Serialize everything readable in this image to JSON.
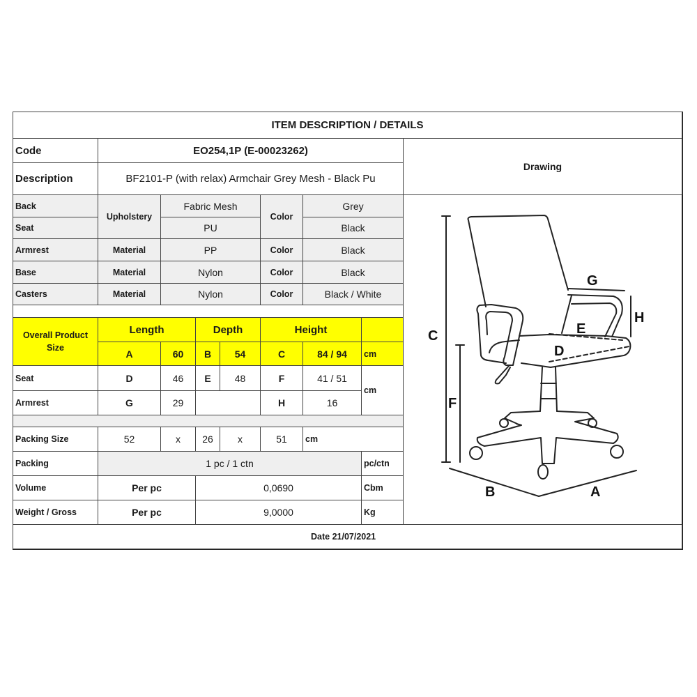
{
  "header": {
    "title": "ITEM DESCRIPTION / DETAILS"
  },
  "code": {
    "label": "Code",
    "value": "EO254,1P  (E-00023262)"
  },
  "description": {
    "label": "Description",
    "value": "BF2101-P (with relax) Armchair Grey Mesh - Black Pu"
  },
  "drawing": {
    "label": "Drawing",
    "dimension_letters": {
      "A": "A",
      "B": "B",
      "C": "C",
      "D": "D",
      "E": "E",
      "F": "F",
      "G": "G",
      "H": "H"
    }
  },
  "materials": {
    "rows": [
      {
        "part": "Back",
        "type": "Upholstery",
        "material": "Fabric Mesh",
        "color_label": "Color",
        "color": "Grey"
      },
      {
        "part": "Seat",
        "type": "Upholstery",
        "material": "PU",
        "color_label": "Color",
        "color": "Black"
      },
      {
        "part": "Armrest",
        "type": "Material",
        "material": "PP",
        "color_label": "Color",
        "color": "Black"
      },
      {
        "part": "Base",
        "type": "Material",
        "material": "Nylon",
        "color_label": "Color",
        "color": "Black"
      },
      {
        "part": "Casters",
        "type": "Material",
        "material": "Nylon",
        "color_label": "Color",
        "color": "Black / White"
      }
    ]
  },
  "overall": {
    "label": "Overall Product Size",
    "headers": {
      "length": "Length",
      "depth": "Depth",
      "height": "Height"
    },
    "A": "A",
    "A_val": "60",
    "B": "B",
    "B_val": "54",
    "C": "C",
    "C_val": "84 / 94",
    "unit": "cm",
    "highlight_color": "#ffff00"
  },
  "seat": {
    "label": "Seat",
    "D": "D",
    "D_val": "46",
    "E": "E",
    "E_val": "48",
    "F": "F",
    "F_val": "41 / 51"
  },
  "armrest": {
    "label": "Armrest",
    "G": "G",
    "G_val": "29",
    "H": "H",
    "H_val": "16"
  },
  "dims_unit": "cm",
  "packing_size": {
    "label": "Packing Size",
    "l": "52",
    "x1": "x",
    "w": "26",
    "x2": "x",
    "h": "51",
    "unit": "cm"
  },
  "packing": {
    "label": "Packing",
    "value": "1 pc / 1 ctn",
    "unit": "pc/ctn"
  },
  "volume": {
    "label": "Volume",
    "per": "Per pc",
    "value": "0,0690",
    "unit": "Cbm"
  },
  "weight": {
    "label": "Weight / Gross",
    "per": "Per pc",
    "value": "9,0000",
    "unit": "Kg"
  },
  "footer": {
    "date": "Date 21/07/2021"
  }
}
